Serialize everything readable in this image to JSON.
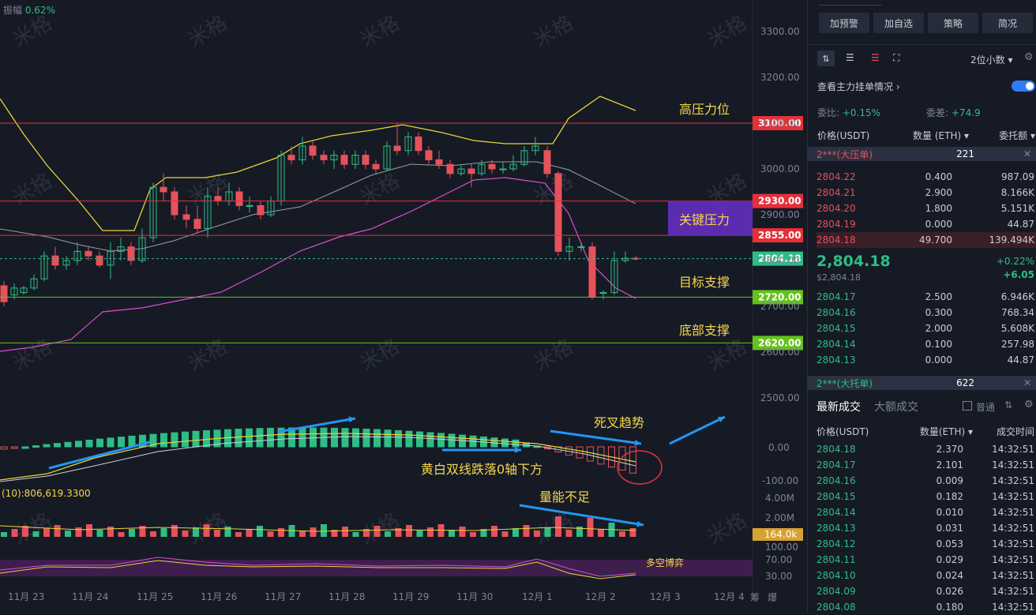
{
  "chart": {
    "amplitude_label": "振幅",
    "amplitude_value": "0.62%",
    "price_ticks": [
      "3300.00",
      "3200.00",
      "3100.00",
      "3000.00",
      "2900.00",
      "2800.00",
      "2700.00",
      "2600.00",
      "2500.00"
    ],
    "macd_ticks": [
      "0.00",
      "-100.00"
    ],
    "vol_ticks": [
      "4.00M",
      "2.00M"
    ],
    "rsi_ticks": [
      "100.00",
      "70.00",
      "30.00"
    ],
    "x_labels": [
      "11月 23",
      "11月 24",
      "11月 25",
      "11月 26",
      "11月 27",
      "11月 28",
      "11月 29",
      "11月 30",
      "12月 1",
      "12月 2",
      "12月 3",
      "12月 4"
    ],
    "levels": [
      {
        "label": "3100.00",
        "color": "#e5303a"
      },
      {
        "label": "2930.00",
        "color": "#e5303a"
      },
      {
        "label": "2855.00",
        "color": "#e5303a"
      },
      {
        "label": "2804.18",
        "color": "#2ebd85"
      },
      {
        "label": "2720.00",
        "color": "#63c21b"
      },
      {
        "label": "2620.00",
        "color": "#63c21b"
      }
    ],
    "annotations": {
      "high_pressure": "高压力位",
      "key_pressure": "关键压力",
      "target_support": "目标支撑",
      "bottom_support": "底部支撑",
      "death_cross": "死叉趋势",
      "below_zero": "黄白双线跌落0轴下方",
      "low_volume": "量能不足",
      "bull_bear": "多空博弈"
    },
    "vol_info": "(10):806,619.3300",
    "vol_current": "164.0k",
    "bottom_icons": [
      "筹",
      "爆"
    ],
    "watermark": "米格"
  },
  "panel": {
    "buttons": [
      "加预警",
      "加自选",
      "策略",
      "简况"
    ],
    "precision": "2位小数",
    "main_orders_label": "查看主力挂单情况",
    "ratio_label": "委比:",
    "ratio_value": "+0.15%",
    "diff_label": "委差:",
    "diff_value": "+74.9",
    "col_price": "价格(USDT)",
    "col_qty": "数量 (ETH)",
    "col_amount": "委托额",
    "big_ask_label": "2***(大压单)",
    "big_ask_qty": "221",
    "asks": [
      {
        "p": "2804.22",
        "q": "0.400",
        "a": "987.09"
      },
      {
        "p": "2804.21",
        "q": "2.900",
        "a": "8.166K"
      },
      {
        "p": "2804.20",
        "q": "1.800",
        "a": "5.151K"
      },
      {
        "p": "2804.19",
        "q": "0.000",
        "a": "44.87"
      },
      {
        "p": "2804.18",
        "q": "49.700",
        "a": "139.494K"
      }
    ],
    "last_price": "2,804.18",
    "last_price_usd": "$2,804.18",
    "change_pct": "+0.22%",
    "change_abs": "+6.05",
    "bids": [
      {
        "p": "2804.17",
        "q": "2.500",
        "a": "6.946K"
      },
      {
        "p": "2804.16",
        "q": "0.300",
        "a": "768.34"
      },
      {
        "p": "2804.15",
        "q": "2.000",
        "a": "5.608K"
      },
      {
        "p": "2804.14",
        "q": "0.100",
        "a": "257.98"
      },
      {
        "p": "2804.13",
        "q": "0.000",
        "a": "44.87"
      }
    ],
    "big_bid_label": "2***(大托单)",
    "big_bid_qty": "622",
    "trades_tab": "最新成交",
    "big_trades_tab": "大额成交",
    "normal_label": "普通",
    "t_col_price": "价格(USDT)",
    "t_col_qty": "数量(ETH)",
    "t_col_time": "成交时间",
    "trades": [
      {
        "p": "2804.18",
        "q": "2.370",
        "t": "14:32:51"
      },
      {
        "p": "2804.17",
        "q": "2.101",
        "t": "14:32:51"
      },
      {
        "p": "2804.16",
        "q": "0.009",
        "t": "14:32:51"
      },
      {
        "p": "2804.15",
        "q": "0.182",
        "t": "14:32:51"
      },
      {
        "p": "2804.14",
        "q": "0.010",
        "t": "14:32:51"
      },
      {
        "p": "2804.13",
        "q": "0.031",
        "t": "14:32:51"
      },
      {
        "p": "2804.12",
        "q": "0.053",
        "t": "14:32:51"
      },
      {
        "p": "2804.11",
        "q": "0.029",
        "t": "14:32:51"
      },
      {
        "p": "2804.10",
        "q": "0.024",
        "t": "14:32:51"
      },
      {
        "p": "2804.09",
        "q": "0.026",
        "t": "14:32:51"
      },
      {
        "p": "2804.08",
        "q": "0.180",
        "t": "14:32:51"
      }
    ]
  }
}
